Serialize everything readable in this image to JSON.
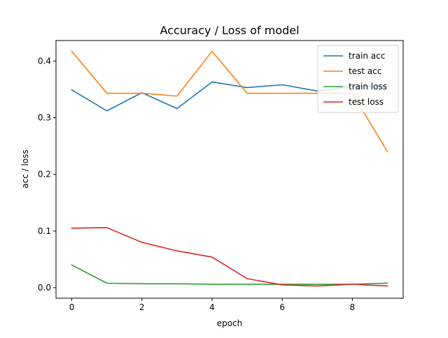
{
  "chart_data": {
    "type": "line",
    "title": "Accuracy / Loss of model",
    "xlabel": "epoch",
    "ylabel": "acc / loss",
    "x": [
      0,
      1,
      2,
      3,
      4,
      5,
      6,
      7,
      8,
      9
    ],
    "xlim": [
      -0.45,
      9.45
    ],
    "ylim": [
      -0.0185,
      0.4361
    ],
    "xticks": [
      0,
      2,
      4,
      6,
      8
    ],
    "yticks": [
      0.0,
      0.1,
      0.2,
      0.3,
      0.4
    ],
    "xtick_labels": [
      "0",
      "2",
      "4",
      "6",
      "8"
    ],
    "ytick_labels": [
      "0.0",
      "0.1",
      "0.2",
      "0.3",
      "0.4"
    ],
    "grid": false,
    "legend_position": "top-right",
    "series": [
      {
        "name": "train acc",
        "color": "#1f77b4",
        "values": [
          0.349,
          0.312,
          0.344,
          0.316,
          0.363,
          0.353,
          0.358,
          0.347,
          0.355,
          0.355
        ]
      },
      {
        "name": "test acc",
        "color": "#ff7f0e",
        "values": [
          0.417,
          0.343,
          0.343,
          0.338,
          0.417,
          0.343,
          0.343,
          0.343,
          0.343,
          0.24
        ]
      },
      {
        "name": "train loss",
        "color": "#2ca02c",
        "values": [
          0.04,
          0.008,
          0.007,
          0.007,
          0.006,
          0.006,
          0.006,
          0.006,
          0.006,
          0.008
        ]
      },
      {
        "name": "test loss",
        "color": "#d62728",
        "values": [
          0.105,
          0.106,
          0.08,
          0.065,
          0.054,
          0.016,
          0.005,
          0.003,
          0.006,
          0.003
        ]
      }
    ]
  }
}
